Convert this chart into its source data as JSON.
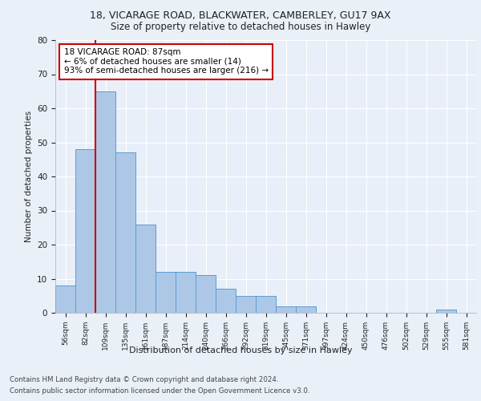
{
  "title1": "18, VICARAGE ROAD, BLACKWATER, CAMBERLEY, GU17 9AX",
  "title2": "Size of property relative to detached houses in Hawley",
  "xlabel": "Distribution of detached houses by size in Hawley",
  "ylabel": "Number of detached properties",
  "bins": [
    "56sqm",
    "82sqm",
    "109sqm",
    "135sqm",
    "161sqm",
    "187sqm",
    "214sqm",
    "240sqm",
    "266sqm",
    "292sqm",
    "319sqm",
    "345sqm",
    "371sqm",
    "397sqm",
    "424sqm",
    "450sqm",
    "476sqm",
    "502sqm",
    "529sqm",
    "555sqm",
    "581sqm"
  ],
  "values": [
    8,
    48,
    65,
    47,
    26,
    12,
    12,
    11,
    7,
    5,
    5,
    2,
    2,
    0,
    0,
    0,
    0,
    0,
    0,
    1,
    0
  ],
  "bar_color": "#adc8e6",
  "bar_edge_color": "#5b9bd5",
  "vline_x": 1.5,
  "vline_color": "#cc0000",
  "annotation_line1": "18 VICARAGE ROAD: 87sqm",
  "annotation_line2": "← 6% of detached houses are smaller (14)",
  "annotation_line3": "93% of semi-detached houses are larger (216) →",
  "annotation_box_color": "#cc0000",
  "ylim": [
    0,
    80
  ],
  "yticks": [
    0,
    10,
    20,
    30,
    40,
    50,
    60,
    70,
    80
  ],
  "footer1": "Contains HM Land Registry data © Crown copyright and database right 2024.",
  "footer2": "Contains public sector information licensed under the Open Government Licence v3.0.",
  "bg_color": "#eaf0f8",
  "plot_bg_color": "#e8eff8"
}
